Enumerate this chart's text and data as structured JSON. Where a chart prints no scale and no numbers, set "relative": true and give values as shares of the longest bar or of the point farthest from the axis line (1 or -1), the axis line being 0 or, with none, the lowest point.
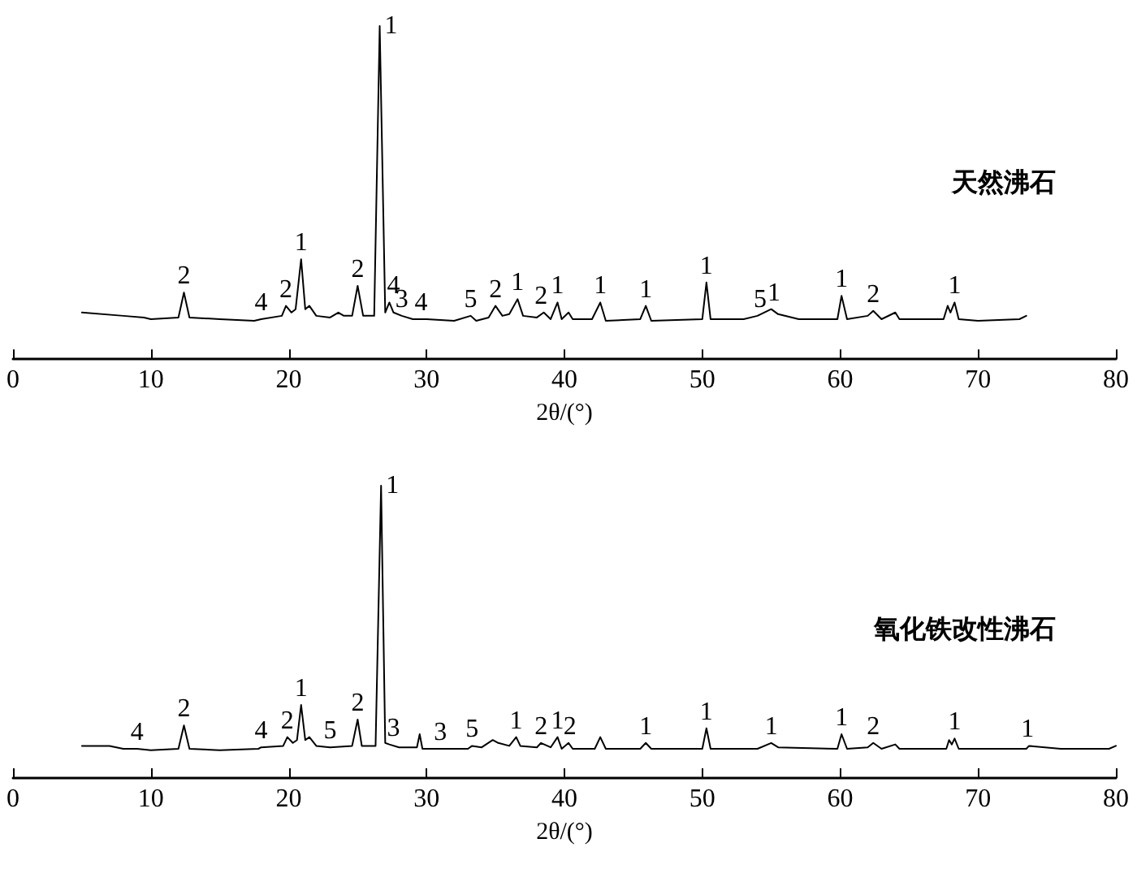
{
  "chart_data": [
    {
      "type": "line",
      "title": "天然沸石",
      "xlabel": "2θ/(°)",
      "relative": true,
      "xlim": [
        0,
        80
      ],
      "xticks": [
        0,
        10,
        20,
        30,
        40,
        50,
        60,
        70,
        80
      ],
      "tick_labels": "x",
      "grid": false,
      "marker": "none",
      "line_style": "solid",
      "series": [
        {
          "color": "#000000",
          "x": [
            5,
            8,
            9.5,
            10,
            12,
            12.4,
            12.8,
            15,
            17.5,
            18,
            19.5,
            19.8,
            20.2,
            20.5,
            20.9,
            21.2,
            21.5,
            22,
            23,
            23.6,
            24,
            24.6,
            25.0,
            25.4,
            26.2,
            26.6,
            27.0,
            27.3,
            27.6,
            28.2,
            29,
            30,
            32,
            33.2,
            33.6,
            34.5,
            35,
            35.5,
            36,
            36.6,
            37,
            38,
            38.5,
            39,
            39.5,
            39.8,
            40.3,
            40.6,
            42,
            42.6,
            43,
            45.5,
            45.9,
            46.3,
            50,
            50.3,
            50.6,
            53,
            54,
            55,
            55.5,
            57,
            59.8,
            60.1,
            60.5,
            62,
            62.4,
            63,
            64,
            64.3,
            67.5,
            67.8,
            68,
            68.3,
            68.6,
            70,
            73,
            73.5
          ],
          "values": [
            0.14,
            0.13,
            0.125,
            0.12,
            0.125,
            0.2,
            0.125,
            0.12,
            0.115,
            0.12,
            0.13,
            0.16,
            0.14,
            0.15,
            0.3,
            0.15,
            0.16,
            0.13,
            0.125,
            0.14,
            0.13,
            0.13,
            0.22,
            0.13,
            0.13,
            1.0,
            0.14,
            0.17,
            0.14,
            0.13,
            0.12,
            0.12,
            0.115,
            0.13,
            0.115,
            0.125,
            0.16,
            0.13,
            0.135,
            0.18,
            0.13,
            0.125,
            0.14,
            0.12,
            0.17,
            0.12,
            0.14,
            0.12,
            0.12,
            0.17,
            0.115,
            0.12,
            0.16,
            0.115,
            0.12,
            0.23,
            0.12,
            0.12,
            0.13,
            0.15,
            0.135,
            0.12,
            0.12,
            0.19,
            0.12,
            0.13,
            0.145,
            0.12,
            0.14,
            0.12,
            0.12,
            0.16,
            0.14,
            0.17,
            0.12,
            0.115,
            0.12,
            0.13
          ]
        }
      ],
      "annotations": [
        {
          "text": "2",
          "x": 12.4,
          "y": 0.2
        },
        {
          "text": "4",
          "x": 18,
          "y": 0.12
        },
        {
          "text": "2",
          "x": 19.8,
          "y": 0.16
        },
        {
          "text": "1",
          "x": 20.9,
          "y": 0.3
        },
        {
          "text": "2",
          "x": 25.0,
          "y": 0.22
        },
        {
          "text": "1",
          "x": 26.6,
          "y": 1.0
        },
        {
          "text": "4",
          "x": 27.6,
          "y": 0.17
        },
        {
          "text": "3",
          "x": 28.2,
          "y": 0.13
        },
        {
          "text": "4",
          "x": 29.6,
          "y": 0.12
        },
        {
          "text": "5",
          "x": 33.2,
          "y": 0.13
        },
        {
          "text": "2",
          "x": 35,
          "y": 0.16
        },
        {
          "text": "1",
          "x": 36.6,
          "y": 0.18
        },
        {
          "text": "2",
          "x": 38.3,
          "y": 0.14
        },
        {
          "text": "1",
          "x": 39.5,
          "y": 0.17
        },
        {
          "text": "1",
          "x": 42.6,
          "y": 0.17
        },
        {
          "text": "1",
          "x": 45.9,
          "y": 0.16
        },
        {
          "text": "1",
          "x": 50.3,
          "y": 0.23
        },
        {
          "text": "5",
          "x": 54.2,
          "y": 0.13
        },
        {
          "text": "1",
          "x": 55.2,
          "y": 0.15
        },
        {
          "text": "1",
          "x": 60.1,
          "y": 0.19
        },
        {
          "text": "2",
          "x": 62.4,
          "y": 0.145
        },
        {
          "text": "1",
          "x": 68.3,
          "y": 0.17
        }
      ]
    },
    {
      "type": "line",
      "title": "氧化铁改性沸石",
      "xlabel": "2θ/(°)",
      "relative": true,
      "xlim": [
        0,
        80
      ],
      "xticks": [
        0,
        10,
        20,
        30,
        40,
        50,
        60,
        70,
        80
      ],
      "tick_labels": "x",
      "grid": false,
      "marker": "none",
      "line_style": "solid",
      "series": [
        {
          "color": "#000000",
          "x": [
            5,
            7,
            8,
            9,
            10,
            12,
            12.4,
            12.8,
            15,
            17.8,
            18,
            19.6,
            19.9,
            20.3,
            20.6,
            20.9,
            21.2,
            21.5,
            22,
            23,
            24.6,
            25.0,
            25.3,
            26.3,
            26.7,
            27.0,
            27.3,
            28,
            29.3,
            29.5,
            29.7,
            31,
            33,
            33.3,
            34,
            34.8,
            35.2,
            36,
            36.5,
            36.8,
            38,
            38.3,
            39,
            39.5,
            39.8,
            40.3,
            40.6,
            42.2,
            42.6,
            43,
            45.5,
            45.9,
            46.3,
            50,
            50.3,
            50.6,
            54,
            55,
            55.5,
            59.8,
            60.1,
            60.5,
            62,
            62.4,
            63,
            64,
            64.3,
            67.7,
            67.9,
            68.1,
            68.3,
            68.6,
            73.5,
            73.7,
            76,
            79.5,
            80
          ],
          "values": [
            0.11,
            0.11,
            0.1,
            0.1,
            0.095,
            0.1,
            0.18,
            0.1,
            0.095,
            0.1,
            0.105,
            0.11,
            0.14,
            0.12,
            0.13,
            0.25,
            0.13,
            0.14,
            0.11,
            0.105,
            0.11,
            0.2,
            0.11,
            0.11,
            1.0,
            0.12,
            0.115,
            0.105,
            0.105,
            0.15,
            0.1,
            0.1,
            0.1,
            0.11,
            0.105,
            0.13,
            0.12,
            0.11,
            0.14,
            0.11,
            0.105,
            0.12,
            0.105,
            0.14,
            0.1,
            0.12,
            0.1,
            0.1,
            0.14,
            0.1,
            0.1,
            0.12,
            0.1,
            0.1,
            0.17,
            0.1,
            0.1,
            0.12,
            0.105,
            0.1,
            0.15,
            0.1,
            0.105,
            0.12,
            0.1,
            0.115,
            0.1,
            0.1,
            0.13,
            0.115,
            0.135,
            0.1,
            0.1,
            0.11,
            0.1,
            0.1,
            0.11
          ]
        }
      ],
      "annotations": [
        {
          "text": "4",
          "x": 9,
          "y": 0.1
        },
        {
          "text": "2",
          "x": 12.4,
          "y": 0.18
        },
        {
          "text": "4",
          "x": 18,
          "y": 0.105
        },
        {
          "text": "2",
          "x": 19.9,
          "y": 0.14
        },
        {
          "text": "1",
          "x": 20.9,
          "y": 0.25
        },
        {
          "text": "5",
          "x": 23,
          "y": 0.105
        },
        {
          "text": "2",
          "x": 25.0,
          "y": 0.2
        },
        {
          "text": "1",
          "x": 26.7,
          "y": 1.0
        },
        {
          "text": "3",
          "x": 27.6,
          "y": 0.115
        },
        {
          "text": "3",
          "x": 31,
          "y": 0.1
        },
        {
          "text": "5",
          "x": 33.3,
          "y": 0.11
        },
        {
          "text": "1",
          "x": 36.5,
          "y": 0.14
        },
        {
          "text": "2",
          "x": 38.3,
          "y": 0.12
        },
        {
          "text": "1",
          "x": 39.5,
          "y": 0.14
        },
        {
          "text": "2",
          "x": 40.4,
          "y": 0.12
        },
        {
          "text": "1",
          "x": 45.9,
          "y": 0.12
        },
        {
          "text": "1",
          "x": 50.3,
          "y": 0.17
        },
        {
          "text": "1",
          "x": 55,
          "y": 0.12
        },
        {
          "text": "1",
          "x": 60.1,
          "y": 0.15
        },
        {
          "text": "2",
          "x": 62.4,
          "y": 0.12
        },
        {
          "text": "1",
          "x": 68.3,
          "y": 0.135
        },
        {
          "text": "1",
          "x": 73.6,
          "y": 0.11
        }
      ]
    }
  ]
}
